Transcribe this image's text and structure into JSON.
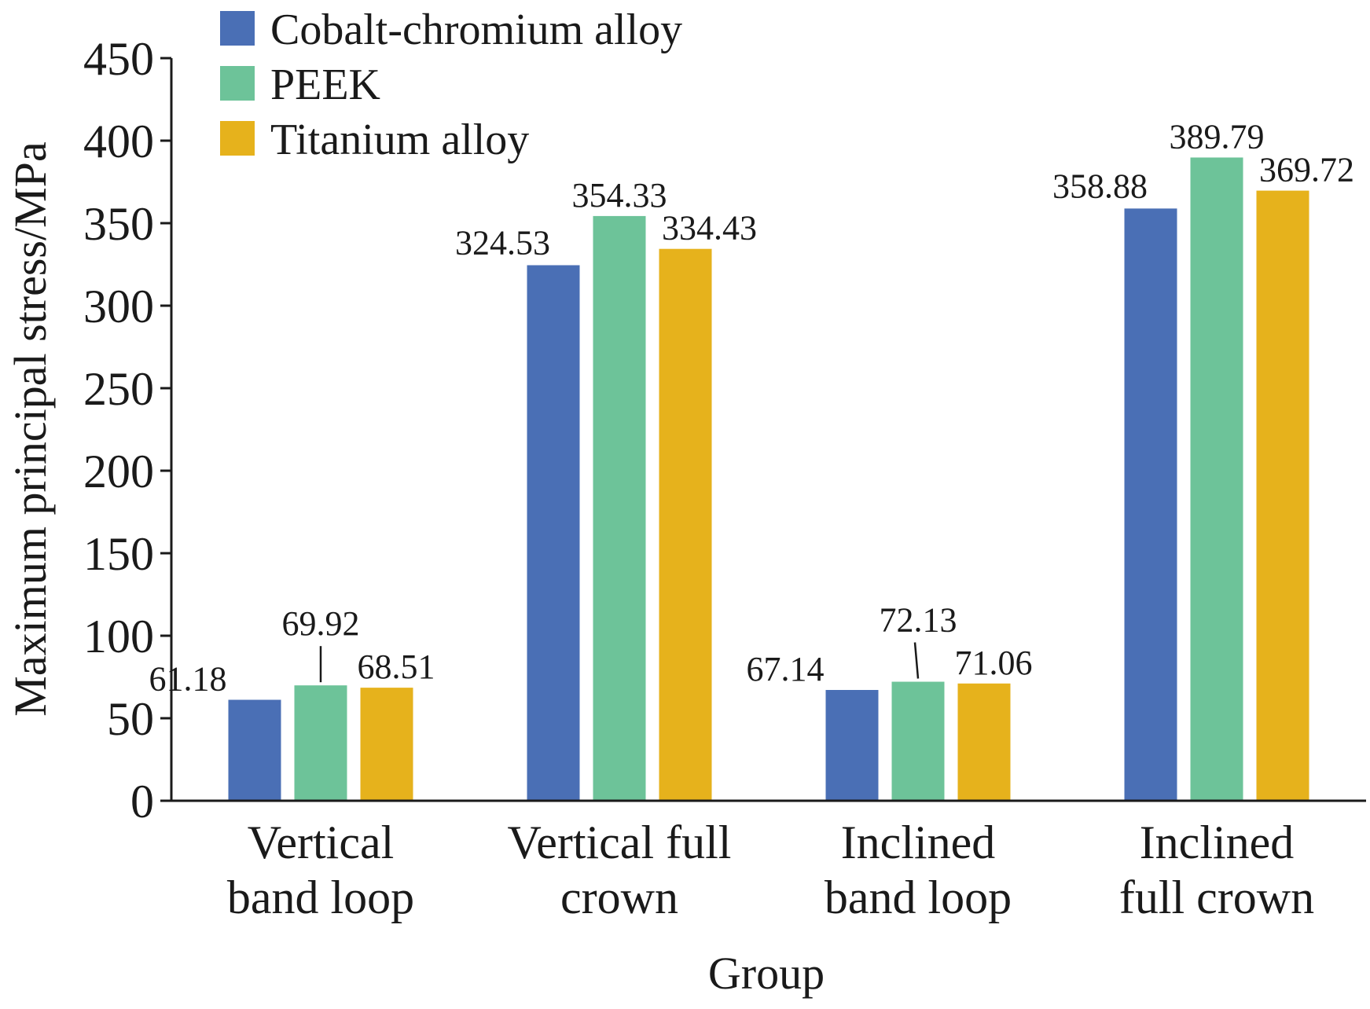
{
  "chart_data": {
    "type": "bar",
    "title": "",
    "xlabel": "Group",
    "ylabel": "Maximum principal stress/MPa",
    "ylim": [
      0,
      450
    ],
    "yticks": [
      "0",
      "50",
      "100",
      "150",
      "200",
      "250",
      "300",
      "350",
      "400",
      "450"
    ],
    "categories": [
      [
        "Vertical",
        "band loop"
      ],
      [
        "Vertical full",
        "crown"
      ],
      [
        "Inclined",
        "band loop"
      ],
      [
        "Inclined",
        "full crown"
      ]
    ],
    "series": [
      {
        "name": "Cobalt-chromium alloy",
        "color": "#4a6fb5",
        "values": [
          61.18,
          324.53,
          67.14,
          358.88
        ],
        "labels": [
          "61.18",
          "324.53",
          "67.14",
          "358.88"
        ]
      },
      {
        "name": "PEEK",
        "color": "#6dc399",
        "values": [
          69.92,
          354.33,
          72.13,
          389.79
        ],
        "labels": [
          "69.92",
          "354.33",
          "72.13",
          "389.79"
        ]
      },
      {
        "name": "Titanium alloy",
        "color": "#e6b21c",
        "values": [
          68.51,
          334.43,
          71.06,
          369.72
        ],
        "labels": [
          "68.51",
          "334.43",
          "71.06",
          "369.72"
        ]
      }
    ],
    "legend_position": "top-left",
    "grid": false
  }
}
